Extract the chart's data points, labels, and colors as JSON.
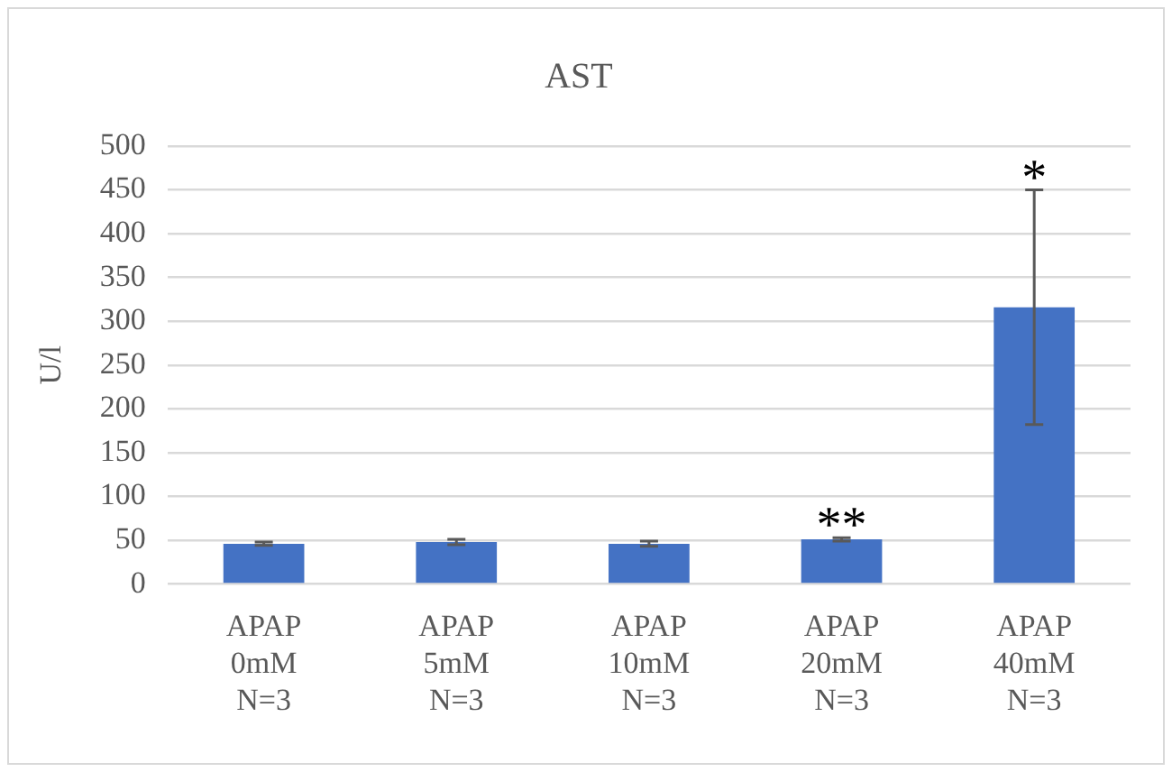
{
  "chart_data": {
    "type": "bar",
    "title": "AST",
    "ylabel": "U/l",
    "categories": [
      "APAP\n0mM\nN=3",
      "APAP\n5mM\nN=3",
      "APAP\n10mM\nN=3",
      "APAP\n20mM\nN=3",
      "APAP\n40mM\nN=3"
    ],
    "values": [
      46,
      48,
      46,
      51,
      316
    ],
    "errors": [
      2,
      3,
      3,
      2,
      134
    ],
    "color": "#4472c4",
    "ylim": [
      0,
      500
    ],
    "yticks": [
      0,
      50,
      100,
      150,
      200,
      250,
      300,
      350,
      400,
      450,
      500
    ],
    "grid": "y",
    "legend": false,
    "annotations": [
      {
        "text": "**",
        "x": "APAP\n20mM\nN=3",
        "y": 53
      },
      {
        "text": "*",
        "x": "APAP\n40mM\nN=3",
        "y": 450
      }
    ]
  }
}
